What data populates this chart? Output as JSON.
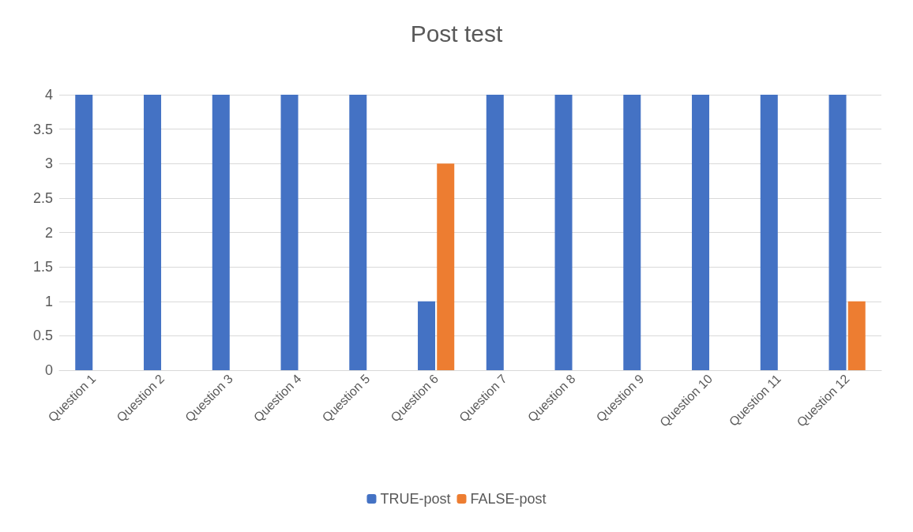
{
  "chart_data": {
    "type": "bar",
    "title": "Post test",
    "categories": [
      "Question 1",
      "Question 2",
      "Question 3",
      "Question 4",
      "Question 5",
      "Question 6",
      "Question 7",
      "Question 8",
      "Question 9",
      "Question 10",
      "Question 11",
      "Question 12"
    ],
    "series": [
      {
        "name": "TRUE-post",
        "color": "#4472c4",
        "values": [
          4,
          4,
          4,
          4,
          4,
          1,
          4,
          4,
          4,
          4,
          4,
          4
        ]
      },
      {
        "name": "FALSE-post",
        "color": "#ed7d31",
        "values": [
          0,
          0,
          0,
          0,
          0,
          3,
          0,
          0,
          0,
          0,
          0,
          1
        ]
      }
    ],
    "ylim": [
      0,
      4
    ],
    "yticks": [
      0,
      0.5,
      1,
      1.5,
      2,
      2.5,
      3,
      3.5,
      4
    ],
    "grid": "y",
    "legend": "bottom"
  }
}
